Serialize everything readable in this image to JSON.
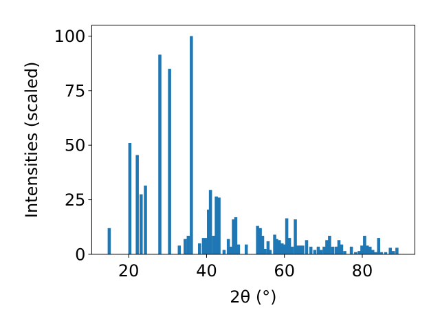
{
  "chart_data": {
    "type": "bar",
    "title": "",
    "xlabel": "2θ (°)",
    "ylabel": "Intensities (scaled)",
    "xlim": [
      10.5,
      93.5
    ],
    "ylim": [
      0,
      105
    ],
    "grid": false,
    "bar_color": "#1f77b4",
    "x_ticks": [
      20,
      40,
      60,
      80
    ],
    "y_ticks": [
      0,
      25,
      50,
      75,
      100
    ],
    "x_tick_labels": [
      "20",
      "40",
      "60",
      "80"
    ],
    "y_tick_labels": [
      "0",
      "25",
      "50",
      "75",
      "100"
    ],
    "bar_width": 0.8,
    "x": [
      15.0,
      20.3,
      22.2,
      23.2,
      24.3,
      28.0,
      30.5,
      33.0,
      34.5,
      35.3,
      36.1,
      38.2,
      39.2,
      39.9,
      40.5,
      41.0,
      41.8,
      42.5,
      43.2,
      44.5,
      45.6,
      46.3,
      46.9,
      47.5,
      48.2,
      50.2,
      53.1,
      53.8,
      54.4,
      55.0,
      55.8,
      56.3,
      57.5,
      58.0,
      58.7,
      59.4,
      60.0,
      60.6,
      61.3,
      62.0,
      62.8,
      63.4,
      64.1,
      64.7,
      65.7,
      66.8,
      67.8,
      68.7,
      69.4,
      70.2,
      70.9,
      71.6,
      72.4,
      73.3,
      74.0,
      74.7,
      75.5,
      77.2,
      78.3,
      79.2,
      79.9,
      80.6,
      81.3,
      82.0,
      82.7,
      83.4,
      84.2,
      84.9,
      86.0,
      87.2,
      88.0,
      88.9
    ],
    "values": [
      12,
      51,
      45.5,
      27.5,
      31.5,
      91.5,
      85,
      4,
      7,
      8.5,
      100,
      5,
      7.5,
      7.5,
      20.5,
      29.5,
      8.5,
      26.5,
      26,
      2,
      7,
      3.5,
      16,
      17,
      4.5,
      4.5,
      13,
      12,
      8.5,
      2.5,
      6,
      2,
      9,
      7,
      6.5,
      5,
      4.5,
      16.5,
      7.5,
      3.5,
      16,
      4,
      4,
      4,
      6.5,
      3.5,
      2,
      3.5,
      2,
      3.5,
      6.5,
      8.5,
      3.5,
      3.5,
      6.5,
      4.5,
      1.5,
      3.5,
      1,
      1.5,
      4,
      8.5,
      4,
      3.5,
      2,
      1,
      7.5,
      1,
      1,
      3,
      1.5,
      3
    ]
  }
}
